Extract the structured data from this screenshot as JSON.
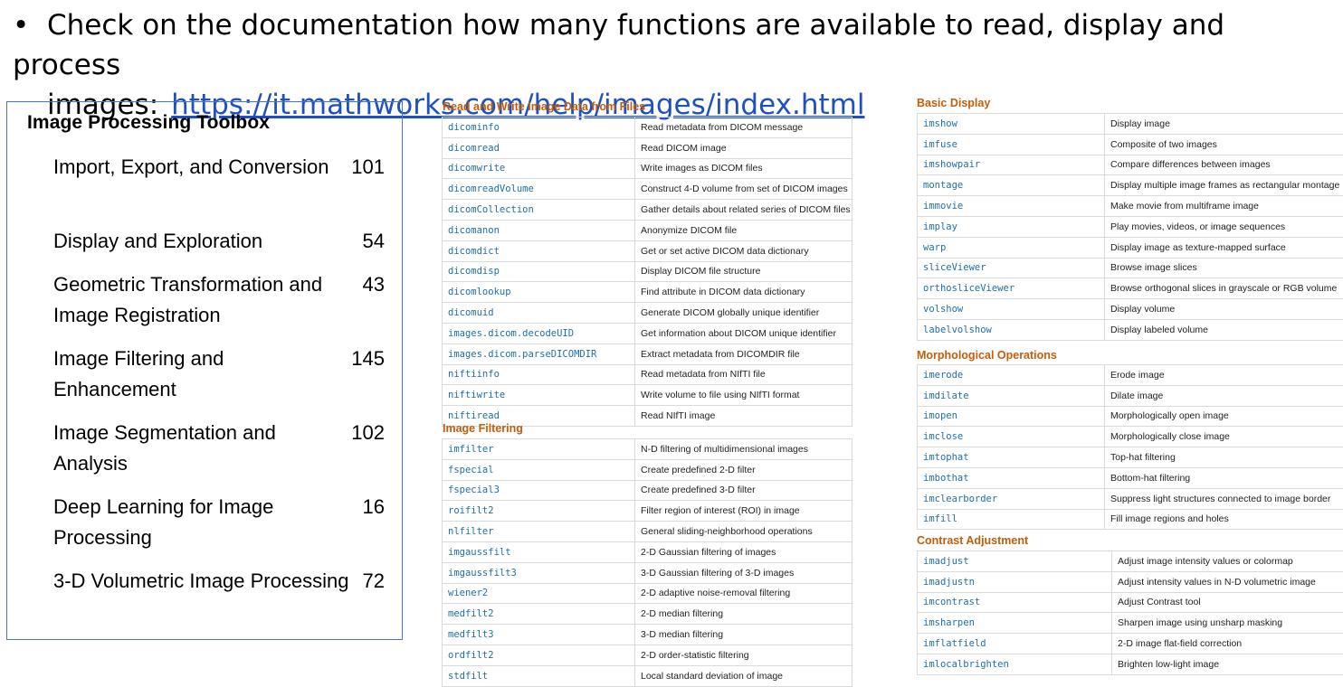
{
  "bullet": {
    "marker": "•",
    "line1": "Check on the documentation how many functions are available to read, display and process",
    "line2": "images:",
    "url": "https://it.mathworks.com/help/images/index.html"
  },
  "toolbox": {
    "title": "Image Processing Toolbox",
    "items": [
      {
        "label": "Import, Export, and Conversion",
        "count": "101"
      },
      {
        "label": "Display and Exploration",
        "count": "54"
      },
      {
        "label": "Geometric Transformation and Image Registration",
        "count": "43"
      },
      {
        "label": "Image Filtering and Enhancement",
        "count": "145"
      },
      {
        "label": "Image Segmentation and Analysis",
        "count": "102"
      },
      {
        "label": "Deep Learning for Image Processing",
        "count": "16"
      },
      {
        "label": "3-D Volumetric Image Processing",
        "count": "72"
      }
    ]
  },
  "sections": {
    "read_write": {
      "title": "Read and Write Image Data from Files",
      "rows": [
        [
          "dicominfo",
          "Read metadata from DICOM message"
        ],
        [
          "dicomread",
          "Read DICOM image"
        ],
        [
          "dicomwrite",
          "Write images as DICOM files"
        ],
        [
          "dicomreadVolume",
          "Construct 4-D volume from set of DICOM images"
        ],
        [
          "dicomCollection",
          "Gather details about related series of DICOM files"
        ],
        [
          "dicomanon",
          "Anonymize DICOM file"
        ],
        [
          "dicomdict",
          "Get or set active DICOM data dictionary"
        ],
        [
          "dicomdisp",
          "Display DICOM file structure"
        ],
        [
          "dicomlookup",
          "Find attribute in DICOM data dictionary"
        ],
        [
          "dicomuid",
          "Generate DICOM globally unique identifier"
        ],
        [
          "images.dicom.decodeUID",
          "Get information about DICOM unique identifier"
        ],
        [
          "images.dicom.parseDICOMDIR",
          "Extract metadata from DICOMDIR file"
        ],
        [
          "niftiinfo",
          "Read metadata from NIfTI file"
        ],
        [
          "niftiwrite",
          "Write volume to file using NIfTI format"
        ],
        [
          "niftiread",
          "Read NIfTI image"
        ]
      ]
    },
    "filtering": {
      "title": "Image Filtering",
      "rows": [
        [
          "imfilter",
          "N-D filtering of multidimensional images"
        ],
        [
          "fspecial",
          "Create predefined 2-D filter"
        ],
        [
          "fspecial3",
          "Create predefined 3-D filter"
        ],
        [
          "roifilt2",
          "Filter region of interest (ROI) in image"
        ],
        [
          "nlfilter",
          "General sliding-neighborhood operations"
        ],
        [
          "imgaussfilt",
          "2-D Gaussian filtering of images"
        ],
        [
          "imgaussfilt3",
          "3-D Gaussian filtering of 3-D images"
        ],
        [
          "wiener2",
          "2-D adaptive noise-removal filtering"
        ],
        [
          "medfilt2",
          "2-D median filtering"
        ],
        [
          "medfilt3",
          "3-D median filtering"
        ],
        [
          "ordfilt2",
          "2-D order-statistic filtering"
        ],
        [
          "stdfilt",
          "Local standard deviation of image"
        ]
      ]
    },
    "basic_display": {
      "title": "Basic Display",
      "rows": [
        [
          "imshow",
          "Display image"
        ],
        [
          "imfuse",
          "Composite of two images"
        ],
        [
          "imshowpair",
          "Compare differences between images"
        ],
        [
          "montage",
          "Display multiple image frames as rectangular montage"
        ],
        [
          "immovie",
          "Make movie from multiframe image"
        ],
        [
          "implay",
          "Play movies, videos, or image sequences"
        ],
        [
          "warp",
          "Display image as texture-mapped surface"
        ],
        [
          "sliceViewer",
          "Browse image slices"
        ],
        [
          "orthosliceViewer",
          "Browse orthogonal slices in grayscale or RGB volume"
        ],
        [
          "volshow",
          "Display volume"
        ],
        [
          "labelvolshow",
          "Display labeled volume"
        ]
      ]
    },
    "morphology": {
      "title": "Morphological Operations",
      "rows": [
        [
          "imerode",
          "Erode image"
        ],
        [
          "imdilate",
          "Dilate image"
        ],
        [
          "imopen",
          "Morphologically open image"
        ],
        [
          "imclose",
          "Morphologically close image"
        ],
        [
          "imtophat",
          "Top-hat filtering"
        ],
        [
          "imbothat",
          "Bottom-hat filtering"
        ],
        [
          "imclearborder",
          "Suppress light structures connected to image border"
        ],
        [
          "imfill",
          "Fill image regions and holes"
        ]
      ]
    },
    "contrast": {
      "title": "Contrast Adjustment",
      "rows": [
        [
          "imadjust",
          "Adjust image intensity values or colormap"
        ],
        [
          "imadjustn",
          "Adjust intensity values in N-D volumetric image"
        ],
        [
          "imcontrast",
          "Adjust Contrast tool"
        ],
        [
          "imsharpen",
          "Sharpen image using unsharp masking"
        ],
        [
          "imflatfield",
          "2-D image flat-field correction"
        ],
        [
          "imlocalbrighten",
          "Brighten low-light image"
        ]
      ]
    }
  },
  "colors": {
    "section_title": "#c45d0a",
    "function_name": "#1f6faa",
    "link": "#1f4fc4",
    "box_border": "#4a74c9"
  }
}
